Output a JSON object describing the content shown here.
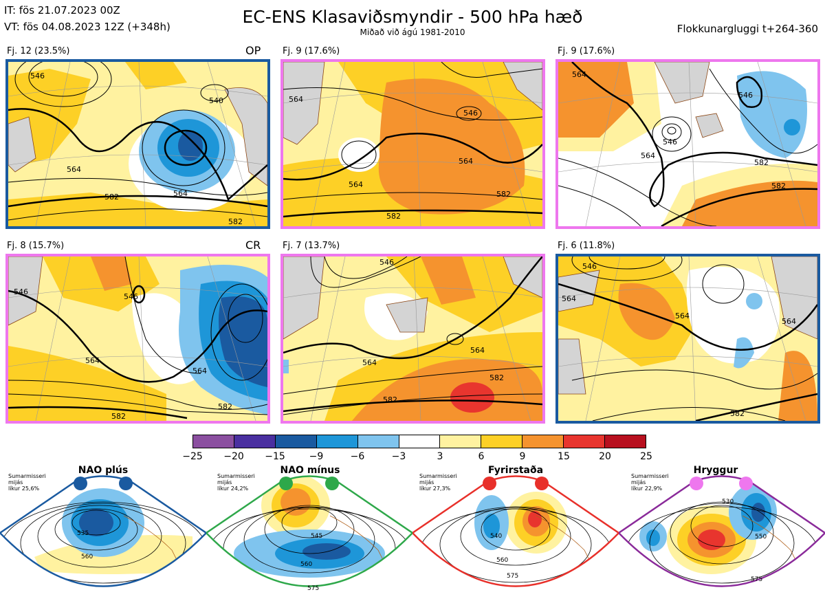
{
  "header": {
    "init_time": "IT: fös 21.07.2023 00Z",
    "valid_time": "VT: fös 04.08.2023 12Z  (+348h)",
    "title": "EC-ENS Klasaviðsmyndir - 500 hPa hæð",
    "subtitle": "Miðað við ágú 1981-2010",
    "window": "Flokkunargluggi t+264-360"
  },
  "colors": {
    "blue_frame": "#1a5aa0",
    "pink_frame": "#ee77ee",
    "land": "#d4d4d4",
    "coast": "#8b4513",
    "contour": "#000000"
  },
  "panels": [
    {
      "label": "Fj. 12 (23.5%)",
      "tag": "OP",
      "frame": "blue",
      "contour_labels": [
        "546",
        "540",
        "564",
        "564",
        "582",
        "582"
      ]
    },
    {
      "label": "Fj. 9 (17.6%)",
      "tag": "",
      "frame": "pink",
      "contour_labels": [
        "564",
        "546",
        "564",
        "564",
        "582",
        "582"
      ]
    },
    {
      "label": "Fj. 9 (17.6%)",
      "tag": "",
      "frame": "pink",
      "contour_labels": [
        "564",
        "546",
        "546",
        "564",
        "582",
        "582"
      ]
    },
    {
      "label": "Fj. 8 (15.7%)",
      "tag": "CR",
      "frame": "pink",
      "contour_labels": [
        "546",
        "546",
        "564",
        "564",
        "582",
        "582"
      ]
    },
    {
      "label": "Fj. 7 (13.7%)",
      "tag": "",
      "frame": "pink",
      "contour_labels": [
        "546",
        "564",
        "564",
        "582",
        "582"
      ]
    },
    {
      "label": "Fj. 6 (11.8%)",
      "tag": "",
      "frame": "blue",
      "contour_labels": [
        "546",
        "564",
        "564",
        "564",
        "582"
      ]
    }
  ],
  "colorbar": {
    "ticks": [
      "−25",
      "−20",
      "−15",
      "−9",
      "−6",
      "−3",
      "3",
      "6",
      "9",
      "15",
      "20",
      "25"
    ],
    "colors": [
      "#8b4fa0",
      "#4a2fa0",
      "#1a5aa0",
      "#1e96d8",
      "#7fc4ee",
      "#ffffff",
      "#fff2a0",
      "#fdd026",
      "#f5932e",
      "#e8352e",
      "#b8101f"
    ]
  },
  "regimes": [
    {
      "name": "NAO plús",
      "note": [
        "Sumarmisseri",
        "mijás",
        "líkur 25,6%"
      ],
      "color": "#1a5aa0",
      "contour_labels": [
        "535",
        "560"
      ]
    },
    {
      "name": "NAO mínus",
      "note": [
        "Sumarmisseri",
        "mijás",
        "líkur 24,2%"
      ],
      "color": "#2ea84a",
      "contour_labels": [
        "545",
        "560",
        "575"
      ]
    },
    {
      "name": "Fyrirstaða",
      "note": [
        "Sumarmisseri",
        "mijás",
        "líkur 27,3%"
      ],
      "color": "#e8302a",
      "contour_labels": [
        "540",
        "560",
        "575"
      ]
    },
    {
      "name": "Hryggur",
      "note": [
        "Sumarmisseri",
        "mijás",
        "líkur 22,9%"
      ],
      "color": "#8a2a9a",
      "contour_labels": [
        "530",
        "550",
        "575"
      ]
    }
  ]
}
